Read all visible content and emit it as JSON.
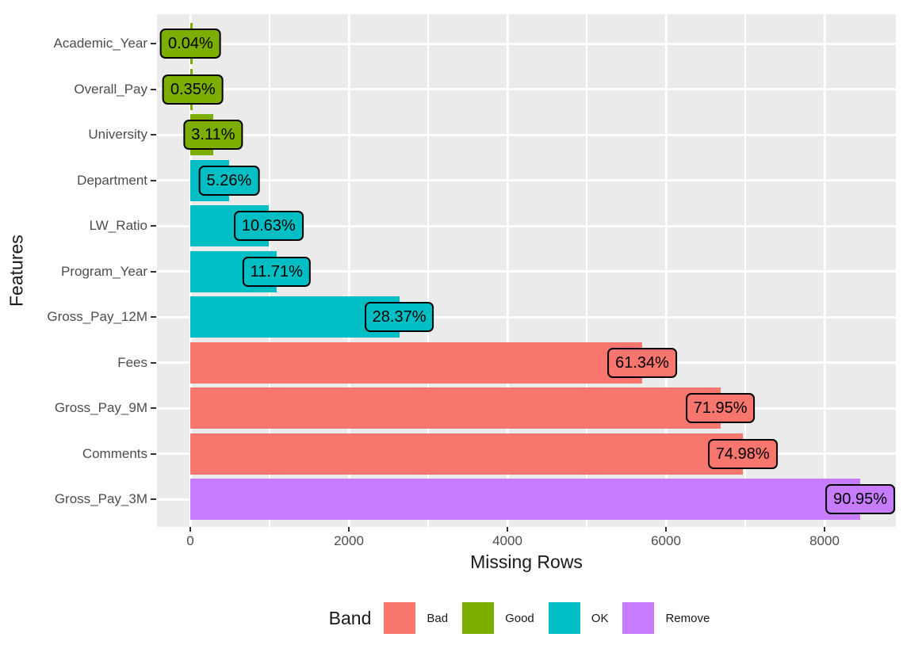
{
  "chart_data": {
    "type": "bar",
    "orientation": "horizontal",
    "title": "",
    "xlabel": "Missing Rows",
    "ylabel": "Features",
    "categories": [
      "Academic_Year",
      "Overall_Pay",
      "University",
      "Department",
      "LW_Ratio",
      "Program_Year",
      "Gross_Pay_12M",
      "Fees",
      "Gross_Pay_9M",
      "Comments",
      "Gross_Pay_3M"
    ],
    "values_missing_rows": [
      4,
      33,
      289,
      489,
      988,
      1088,
      2636,
      5700,
      6686,
      6967,
      8451
    ],
    "labels_pct": [
      "0.04%",
      "0.35%",
      "3.11%",
      "5.26%",
      "10.63%",
      "11.71%",
      "28.37%",
      "61.34%",
      "71.95%",
      "74.98%",
      "90.95%"
    ],
    "bands": [
      "Good",
      "Good",
      "Good",
      "OK",
      "OK",
      "OK",
      "OK",
      "Bad",
      "Bad",
      "Bad",
      "Remove"
    ],
    "x_ticks": [
      0,
      2000,
      4000,
      6000,
      8000
    ],
    "x_tick_labels": [
      "0",
      "2000",
      "4000",
      "6000",
      "8000"
    ],
    "x_minor_gridlines": [
      1000,
      3000,
      5000,
      7000
    ],
    "xlim": [
      -420,
      8930
    ],
    "grid": "on",
    "legend_position": "bottom",
    "legend": {
      "title": "Band",
      "entries": [
        {
          "label": "Bad",
          "color": "#F8766D"
        },
        {
          "label": "Good",
          "color": "#7CAE00"
        },
        {
          "label": "OK",
          "color": "#00BFC4"
        },
        {
          "label": "Remove",
          "color": "#C77CFF"
        }
      ]
    },
    "colors": {
      "Bad": "#F8766D",
      "Good": "#7CAE00",
      "OK": "#00BFC4",
      "Remove": "#C77CFF"
    },
    "panel_background": "#EBEBEB",
    "gridline_color": "#FFFFFF",
    "axis_text_color": "#4D4D4D",
    "label_box_border_color": "#000000"
  }
}
